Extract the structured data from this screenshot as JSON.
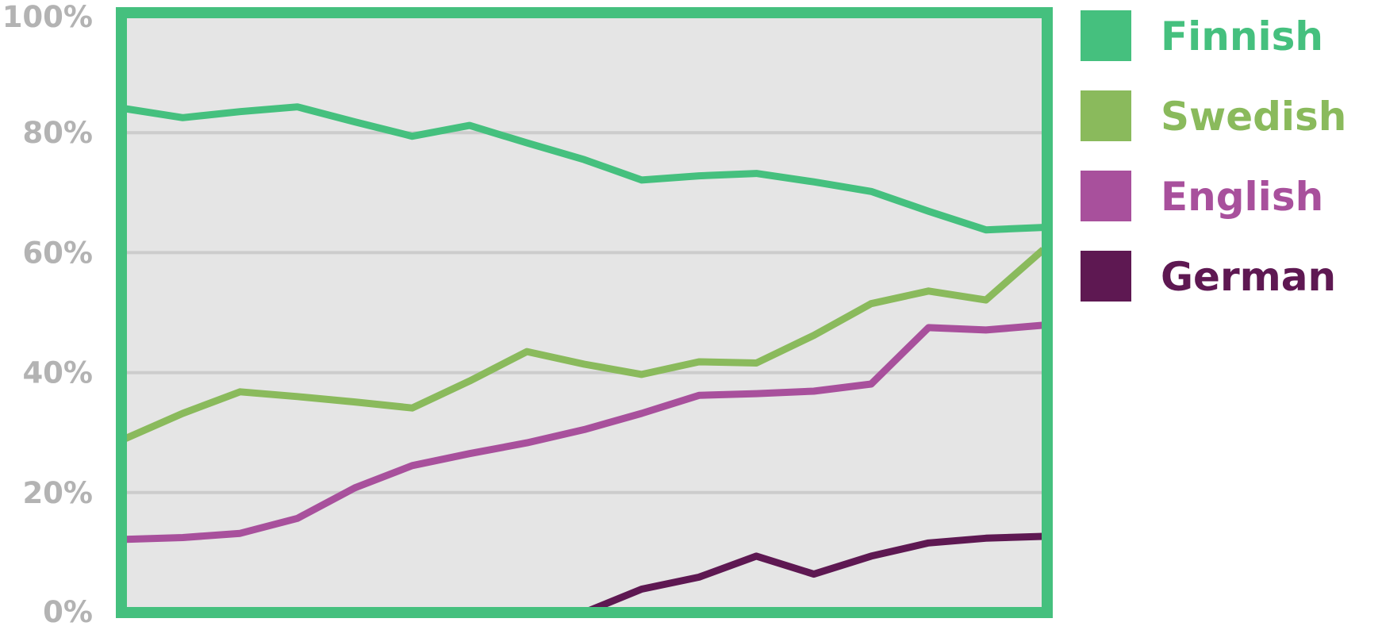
{
  "chart_data": {
    "type": "line",
    "title": "",
    "xlabel": "",
    "ylabel": "",
    "ylim": [
      0,
      100
    ],
    "yticks": [
      "0%",
      "20%",
      "40%",
      "60%",
      "80%",
      "100%"
    ],
    "ytick_values": [
      0,
      20,
      40,
      60,
      80,
      100
    ],
    "grid": true,
    "legend_position": "right",
    "plot_background": "#e5e5e5",
    "frame_color": "#45c07e",
    "gridline_color": "#cccccc",
    "tick_color": "#b3b3b3",
    "x": [
      0,
      1,
      2,
      3,
      4,
      5,
      6,
      7,
      8,
      9,
      10,
      11,
      12,
      13,
      14,
      15,
      16
    ],
    "series": [
      {
        "name": "Finnish",
        "color": "#45c07e",
        "values": [
          84,
          82.5,
          83.5,
          84.3,
          81.8,
          79.4,
          81.2,
          78.3,
          75.5,
          72.1,
          72.8,
          73.2,
          71.8,
          70.2,
          66.9,
          63.8,
          64.2
        ]
      },
      {
        "name": "Swedish",
        "color": "#8aba5c",
        "values": [
          29,
          33.2,
          36.8,
          36,
          35.1,
          34.1,
          38.6,
          43.5,
          41.4,
          39.7,
          41.8,
          41.6,
          46.2,
          51.5,
          53.6,
          52.1,
          60.5
        ]
      },
      {
        "name": "English",
        "color": "#a8509c",
        "values": [
          12.2,
          12.5,
          13.2,
          15.7,
          20.8,
          24.5,
          26.5,
          28.3,
          30.5,
          33.2,
          36.2,
          36.5,
          36.9,
          38.1,
          47.5,
          47.1,
          47.9
        ]
      },
      {
        "name": "German",
        "color": "#5e1852",
        "values": [
          null,
          null,
          null,
          null,
          null,
          null,
          null,
          null,
          0,
          3.9,
          5.9,
          9.4,
          6.4,
          9.4,
          11.6,
          12.4,
          12.7
        ]
      }
    ]
  }
}
